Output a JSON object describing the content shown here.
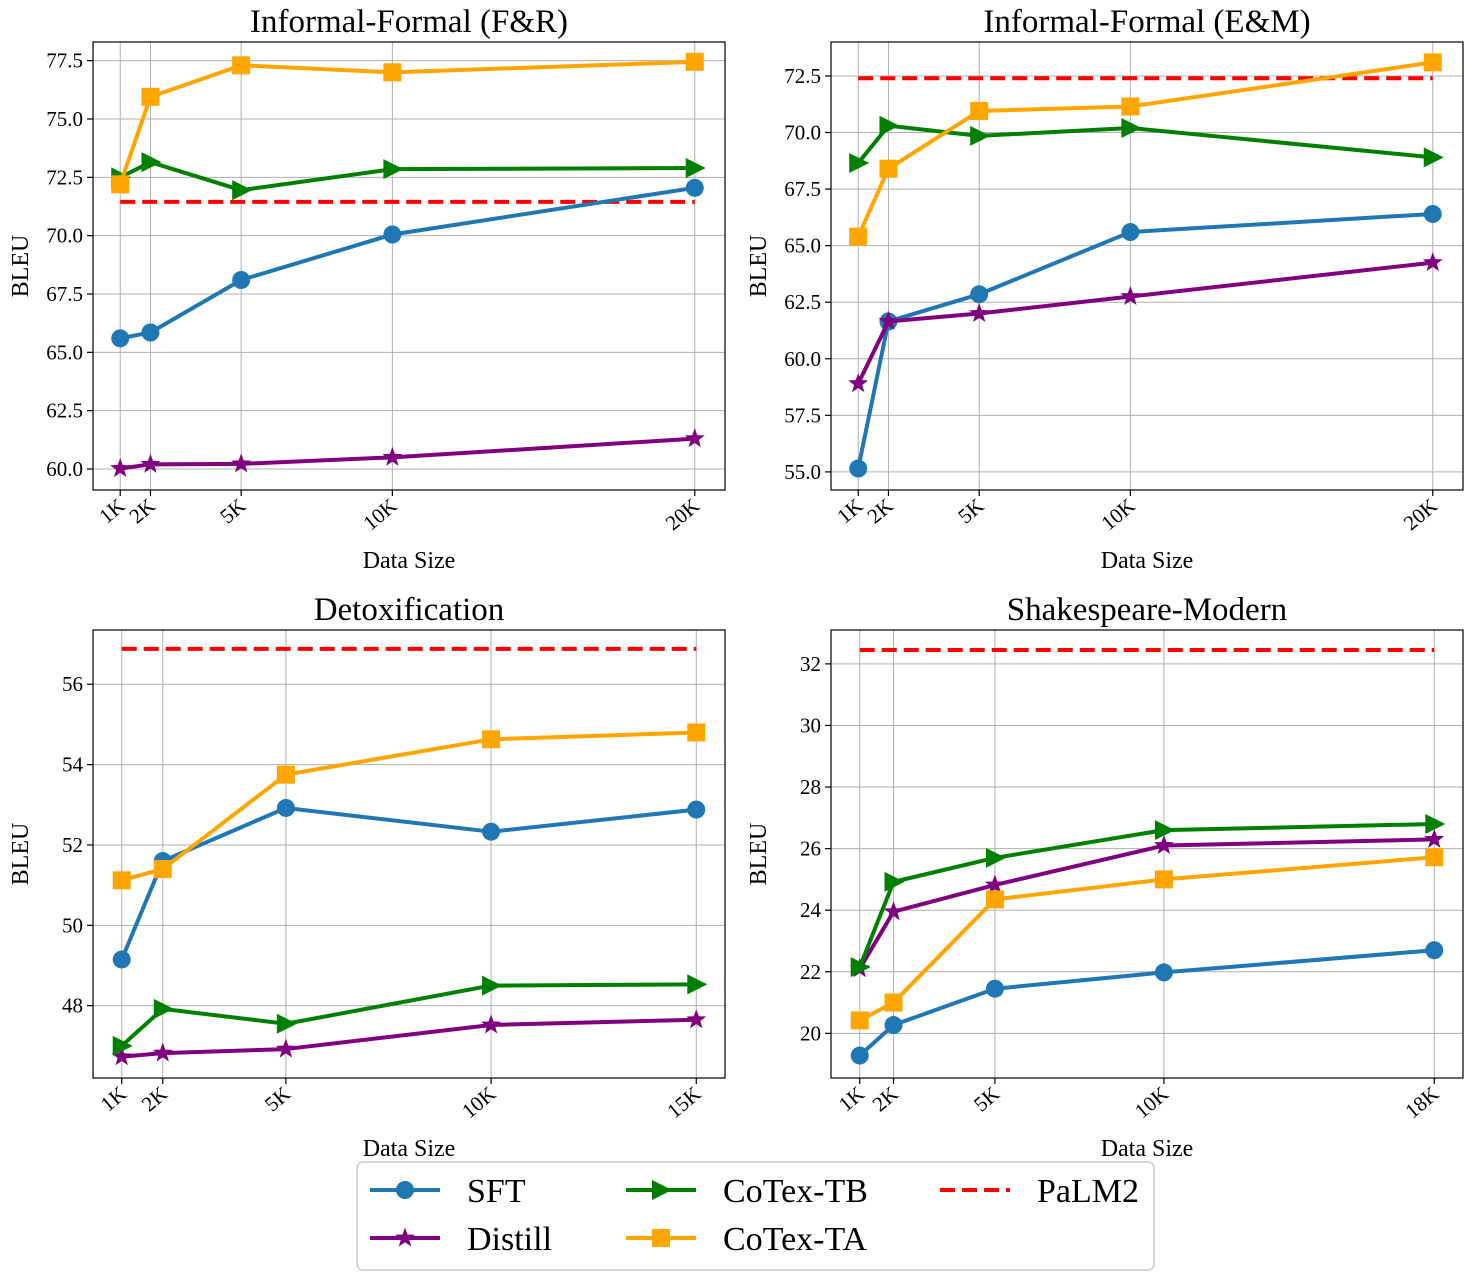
{
  "chart_data": [
    {
      "type": "line",
      "title": "Informal-Formal (F&R)",
      "xlabel": "Data Size",
      "ylabel": "BLEU",
      "x_ticks": [
        {
          "value": 1,
          "label": "1K"
        },
        {
          "value": 2,
          "label": "2K"
        },
        {
          "value": 5,
          "label": "5K"
        },
        {
          "value": 10,
          "label": "10K"
        },
        {
          "value": 20,
          "label": "20K"
        }
      ],
      "x": [
        1,
        2,
        5,
        10,
        20
      ],
      "xlim": [
        0.1,
        21.0
      ],
      "ylim": [
        59.1,
        78.3
      ],
      "y_ticks": [
        {
          "value": 60,
          "label": "60.0"
        },
        {
          "value": 62.5,
          "label": "62.5"
        },
        {
          "value": 65,
          "label": "65.0"
        },
        {
          "value": 67.5,
          "label": "67.5"
        },
        {
          "value": 70,
          "label": "70.0"
        },
        {
          "value": 72.5,
          "label": "72.5"
        },
        {
          "value": 75,
          "label": "75.0"
        },
        {
          "value": 77.5,
          "label": "77.5"
        }
      ],
      "grid": true,
      "series": [
        {
          "key": "sft",
          "values": [
            65.6,
            65.85,
            68.1,
            70.05,
            72.05
          ]
        },
        {
          "key": "distill",
          "values": [
            60.02,
            60.2,
            60.22,
            60.5,
            61.3
          ]
        },
        {
          "key": "cotex_tb",
          "values": [
            72.5,
            73.15,
            71.95,
            72.85,
            72.9
          ]
        },
        {
          "key": "cotex_ta",
          "values": [
            72.2,
            75.95,
            77.3,
            77.0,
            77.45
          ]
        }
      ],
      "palm2": 71.45
    },
    {
      "type": "line",
      "title": "Informal-Formal (E&M)",
      "xlabel": "Data Size",
      "ylabel": "BLEU",
      "x_ticks": [
        {
          "value": 1,
          "label": "1K"
        },
        {
          "value": 2,
          "label": "2K"
        },
        {
          "value": 5,
          "label": "5K"
        },
        {
          "value": 10,
          "label": "10K"
        },
        {
          "value": 20,
          "label": "20K"
        }
      ],
      "x": [
        1,
        2,
        5,
        10,
        20
      ],
      "xlim": [
        0.1,
        21.0
      ],
      "ylim": [
        54.2,
        74.0
      ],
      "y_ticks": [
        {
          "value": 55,
          "label": "55.0"
        },
        {
          "value": 57.5,
          "label": "57.5"
        },
        {
          "value": 60,
          "label": "60.0"
        },
        {
          "value": 62.5,
          "label": "62.5"
        },
        {
          "value": 65,
          "label": "65.0"
        },
        {
          "value": 67.5,
          "label": "67.5"
        },
        {
          "value": 70,
          "label": "70.0"
        },
        {
          "value": 72.5,
          "label": "72.5"
        }
      ],
      "grid": true,
      "series": [
        {
          "key": "sft",
          "values": [
            55.15,
            61.65,
            62.85,
            65.6,
            66.4
          ]
        },
        {
          "key": "distill",
          "values": [
            58.9,
            61.65,
            62.0,
            62.75,
            64.25
          ]
        },
        {
          "key": "cotex_tb",
          "values": [
            68.65,
            70.3,
            69.85,
            70.2,
            68.9
          ]
        },
        {
          "key": "cotex_ta",
          "values": [
            65.4,
            68.4,
            70.95,
            71.15,
            73.1
          ]
        }
      ],
      "palm2": 72.4
    },
    {
      "type": "line",
      "title": "Detoxification",
      "xlabel": "Data Size",
      "ylabel": "BLEU",
      "x_ticks": [
        {
          "value": 1,
          "label": "1K"
        },
        {
          "value": 2,
          "label": "2K"
        },
        {
          "value": 5,
          "label": "5K"
        },
        {
          "value": 10,
          "label": "10K"
        },
        {
          "value": 15,
          "label": "15K"
        }
      ],
      "x": [
        1,
        2,
        5,
        10,
        15
      ],
      "xlim": [
        0.3,
        15.7
      ],
      "ylim": [
        46.2,
        57.35
      ],
      "y_ticks": [
        {
          "value": 48,
          "label": "48"
        },
        {
          "value": 50,
          "label": "50"
        },
        {
          "value": 52,
          "label": "52"
        },
        {
          "value": 54,
          "label": "54"
        },
        {
          "value": 56,
          "label": "56"
        }
      ],
      "grid": true,
      "series": [
        {
          "key": "sft",
          "values": [
            49.15,
            51.6,
            52.92,
            52.33,
            52.88
          ]
        },
        {
          "key": "distill",
          "values": [
            46.73,
            46.82,
            46.92,
            47.52,
            47.65
          ]
        },
        {
          "key": "cotex_tb",
          "values": [
            47.0,
            47.92,
            47.55,
            48.5,
            48.53
          ]
        },
        {
          "key": "cotex_ta",
          "values": [
            51.12,
            51.4,
            53.75,
            54.63,
            54.8
          ]
        }
      ],
      "palm2": 56.88
    },
    {
      "type": "line",
      "title": "Shakespeare-Modern",
      "xlabel": "Data Size",
      "ylabel": "BLEU",
      "x_ticks": [
        {
          "value": 1,
          "label": "1K"
        },
        {
          "value": 2,
          "label": "2K"
        },
        {
          "value": 5,
          "label": "5K"
        },
        {
          "value": 10,
          "label": "10K"
        },
        {
          "value": 18,
          "label": "18K"
        }
      ],
      "x": [
        1,
        2,
        5,
        10,
        18
      ],
      "xlim": [
        0.15,
        18.85
      ],
      "ylim": [
        18.55,
        33.1
      ],
      "y_ticks": [
        {
          "value": 20,
          "label": "20"
        },
        {
          "value": 22,
          "label": "22"
        },
        {
          "value": 24,
          "label": "24"
        },
        {
          "value": 26,
          "label": "26"
        },
        {
          "value": 28,
          "label": "28"
        },
        {
          "value": 30,
          "label": "30"
        },
        {
          "value": 32,
          "label": "32"
        }
      ],
      "grid": true,
      "series": [
        {
          "key": "sft",
          "values": [
            19.28,
            20.27,
            21.45,
            21.98,
            22.7
          ]
        },
        {
          "key": "distill",
          "values": [
            22.1,
            23.95,
            24.82,
            26.1,
            26.3
          ]
        },
        {
          "key": "cotex_tb",
          "values": [
            22.15,
            24.92,
            25.7,
            26.6,
            26.8
          ]
        },
        {
          "key": "cotex_ta",
          "values": [
            20.42,
            21.0,
            24.35,
            25.0,
            25.72
          ]
        }
      ],
      "palm2": 32.45
    }
  ],
  "legend": {
    "position": "bottom-center",
    "entries": [
      {
        "key": "sft",
        "label": "SFT",
        "color": "#1f77b4",
        "marker": "circle",
        "style": "solid"
      },
      {
        "key": "distill",
        "label": "Distill",
        "color": "#800080",
        "marker": "star",
        "style": "solid"
      },
      {
        "key": "cotex_tb",
        "label": "CoTex-TB",
        "color": "#008000",
        "marker": "triangle-right",
        "style": "solid"
      },
      {
        "key": "cotex_ta",
        "label": "CoTex-TA",
        "color": "#ffa500",
        "marker": "square",
        "style": "solid"
      },
      {
        "key": "palm2",
        "label": "PaLM2",
        "color": "#ff0000",
        "marker": "none",
        "style": "dashed"
      }
    ]
  }
}
